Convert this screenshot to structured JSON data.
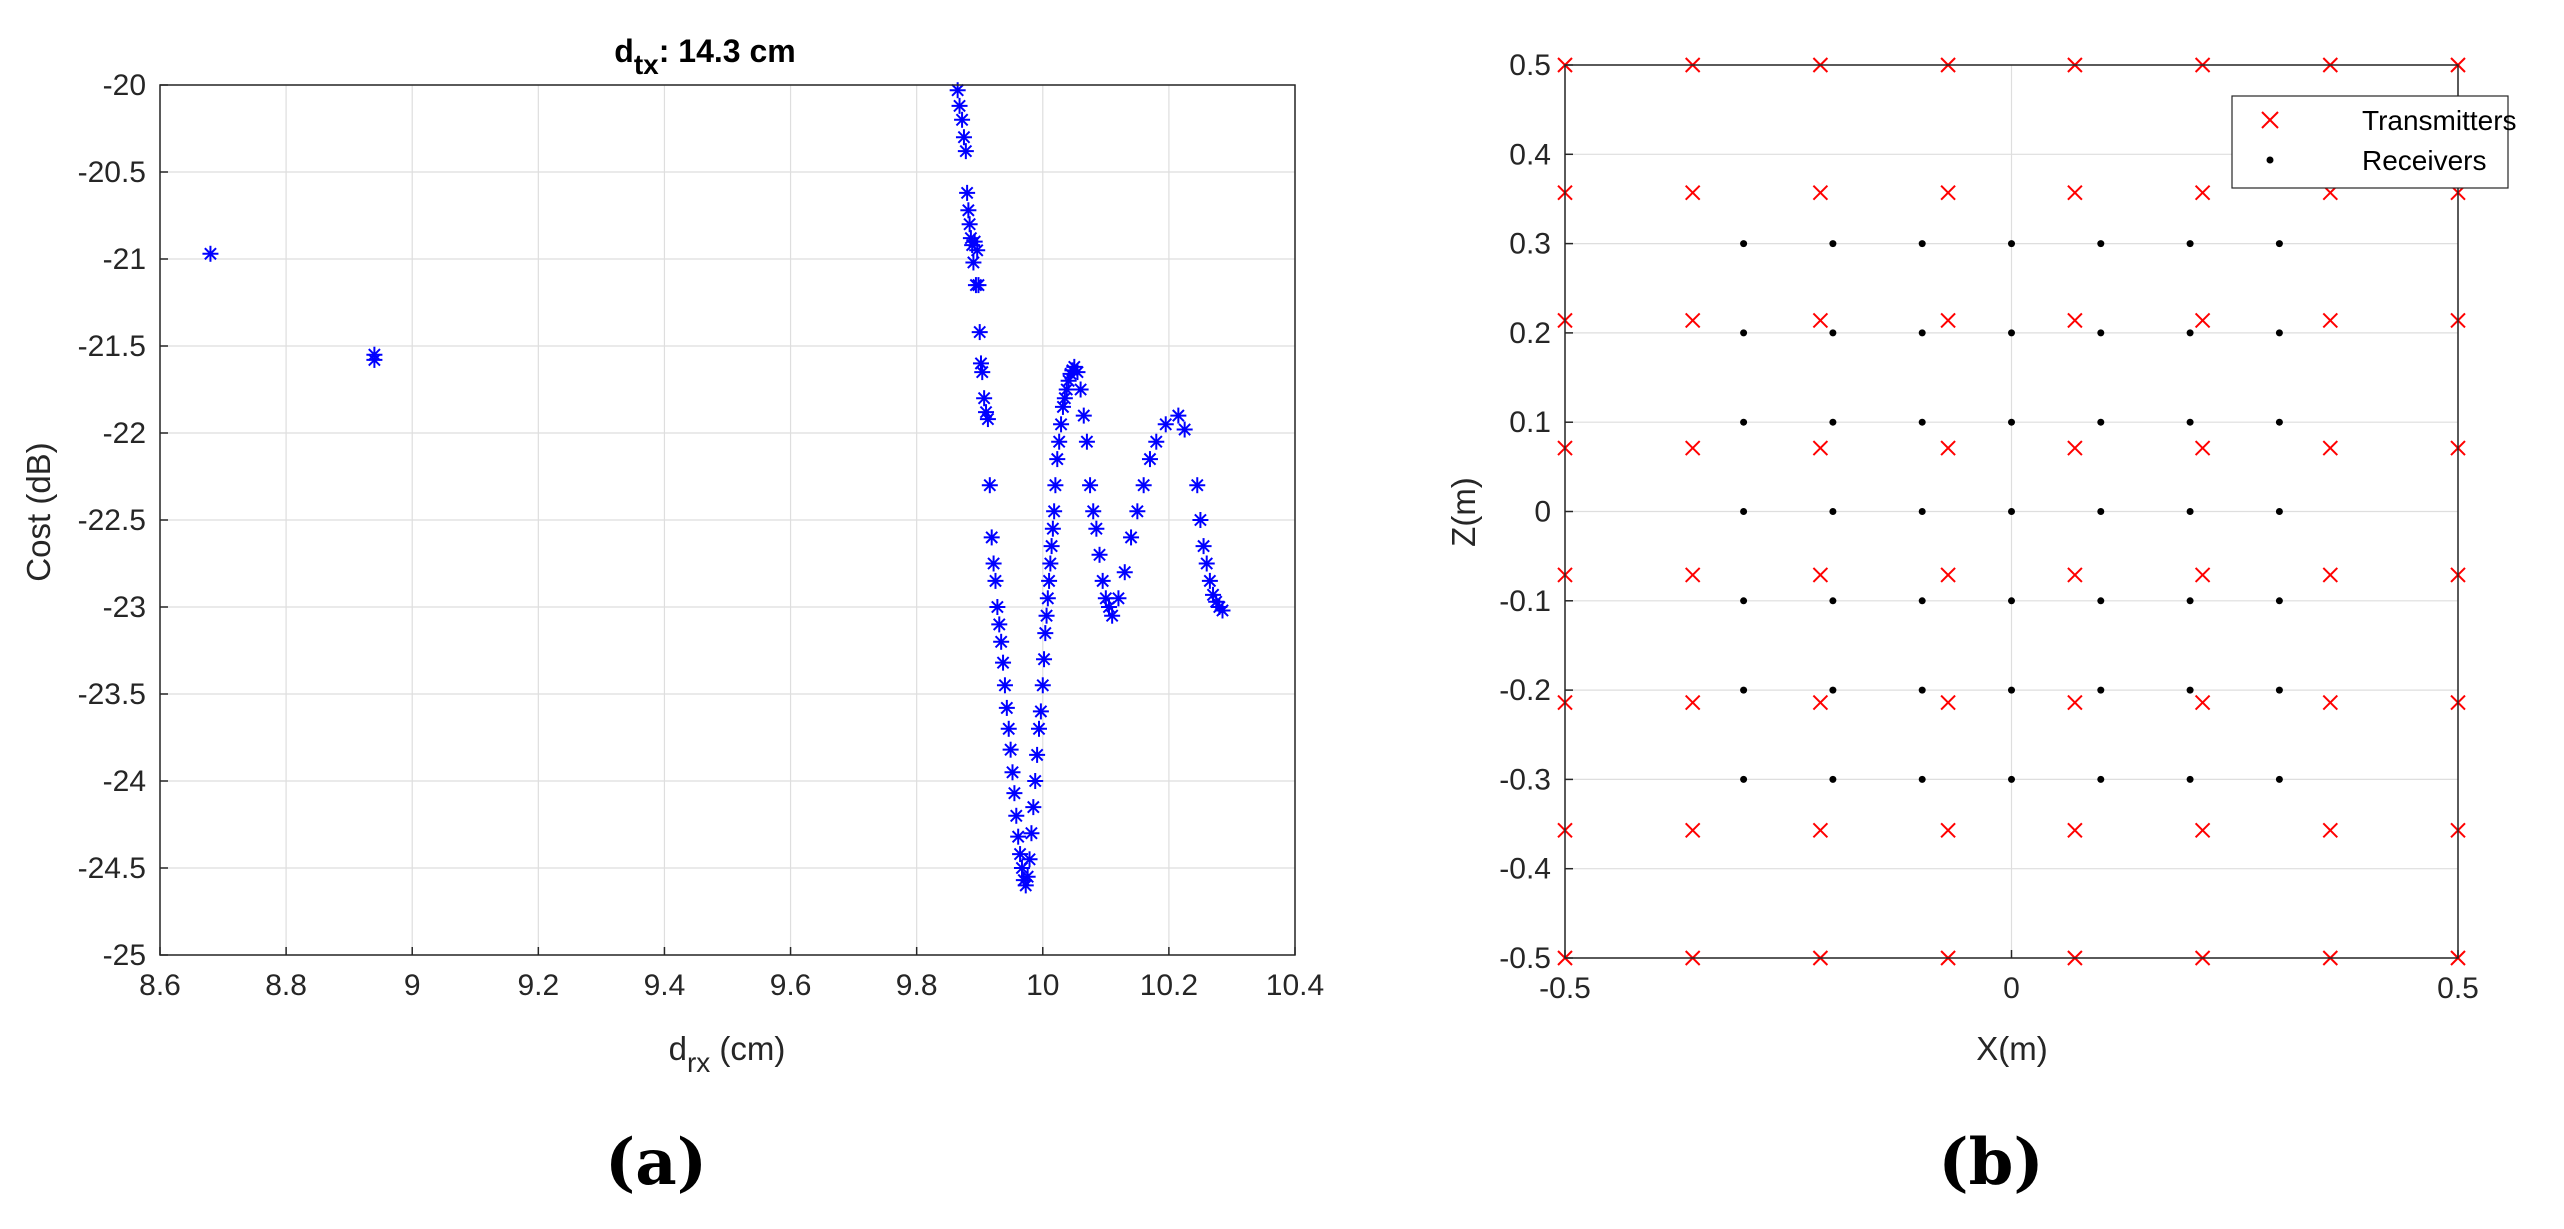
{
  "chart_data": [
    {
      "type": "scatter",
      "panel_label": "(a)",
      "title_main": "d",
      "title_sub": "tx",
      "title_rest": ": 14.3 cm",
      "xlabel_main": "d",
      "xlabel_sub": "rx",
      "xlabel_rest": " (cm)",
      "ylabel": "Cost (dB)",
      "xlim": [
        8.6,
        10.4
      ],
      "ylim": [
        -25,
        -20
      ],
      "xticks": [
        8.6,
        8.8,
        9,
        9.2,
        9.4,
        9.6,
        9.8,
        10,
        10.2,
        10.4
      ],
      "xtick_labels": [
        "8.6",
        "8.8",
        "9",
        "9.2",
        "9.4",
        "9.6",
        "9.8",
        "10",
        "10.2",
        "10.4"
      ],
      "yticks": [
        -25,
        -24.5,
        -24,
        -23.5,
        -23,
        -22.5,
        -22,
        -21.5,
        -21,
        -20.5,
        -20
      ],
      "ytick_labels": [
        "-25",
        "-24.5",
        "-24",
        "-23.5",
        "-23",
        "-22.5",
        "-22",
        "-21.5",
        "-21",
        "-20.5",
        "-20"
      ],
      "grid": true,
      "marker": "asterisk",
      "marker_color": "#0000ff",
      "series": [
        {
          "x": [
            8.68,
            8.94,
            8.94,
            9.865,
            9.868,
            9.872,
            9.875,
            9.878,
            9.88,
            9.882,
            9.884,
            9.886,
            9.888,
            9.89,
            9.892,
            9.894,
            9.896,
            9.898,
            9.9,
            9.902,
            9.904,
            9.907,
            9.91,
            9.913,
            9.916,
            9.919,
            9.922,
            9.925,
            9.928,
            9.931,
            9.934,
            9.937,
            9.94,
            9.943,
            9.946,
            9.949,
            9.952,
            9.955,
            9.958,
            9.961,
            9.964,
            9.967,
            9.97,
            9.973,
            9.976,
            9.979,
            9.982,
            9.985,
            9.988,
            9.991,
            9.994,
            9.997,
            10.0,
            10.002,
            10.004,
            10.006,
            10.008,
            10.01,
            10.012,
            10.014,
            10.016,
            10.018,
            10.02,
            10.023,
            10.026,
            10.029,
            10.032,
            10.035,
            10.038,
            10.041,
            10.044,
            10.047,
            10.05,
            10.055,
            10.06,
            10.065,
            10.07,
            10.075,
            10.08,
            10.085,
            10.09,
            10.095,
            10.1,
            10.105,
            10.11,
            10.12,
            10.13,
            10.14,
            10.15,
            10.16,
            10.17,
            10.18,
            10.195,
            10.215,
            10.225,
            10.245,
            10.25,
            10.255,
            10.26,
            10.265,
            10.27,
            10.275,
            10.28,
            10.285
          ],
          "y": [
            -20.97,
            -21.55,
            -21.58,
            -20.03,
            -20.12,
            -20.2,
            -20.3,
            -20.38,
            -20.62,
            -20.72,
            -20.8,
            -20.88,
            -20.92,
            -21.02,
            -20.9,
            -21.15,
            -20.95,
            -21.15,
            -21.42,
            -21.6,
            -21.65,
            -21.8,
            -21.88,
            -21.92,
            -22.3,
            -22.6,
            -22.75,
            -22.85,
            -23.0,
            -23.1,
            -23.2,
            -23.32,
            -23.45,
            -23.58,
            -23.7,
            -23.82,
            -23.95,
            -24.07,
            -24.2,
            -24.32,
            -24.42,
            -24.5,
            -24.57,
            -24.6,
            -24.55,
            -24.45,
            -24.3,
            -24.15,
            -24.0,
            -23.85,
            -23.7,
            -23.6,
            -23.45,
            -23.3,
            -23.15,
            -23.05,
            -22.95,
            -22.85,
            -22.75,
            -22.65,
            -22.55,
            -22.45,
            -22.3,
            -22.15,
            -22.05,
            -21.95,
            -21.85,
            -21.8,
            -21.75,
            -21.7,
            -21.66,
            -21.64,
            -21.62,
            -21.65,
            -21.75,
            -21.9,
            -22.05,
            -22.3,
            -22.45,
            -22.55,
            -22.7,
            -22.85,
            -22.95,
            -23.0,
            -23.05,
            -22.95,
            -22.8,
            -22.6,
            -22.45,
            -22.3,
            -22.15,
            -22.05,
            -21.95,
            -21.9,
            -21.98,
            -22.3,
            -22.5,
            -22.65,
            -22.75,
            -22.85,
            -22.93,
            -22.97,
            -23.0,
            -23.02
          ]
        }
      ]
    },
    {
      "type": "scatter",
      "panel_label": "(b)",
      "xlabel": "X(m)",
      "ylabel": "Z(m)",
      "xlim": [
        -0.5,
        0.5
      ],
      "ylim": [
        -0.5,
        0.5
      ],
      "xticks": [
        -0.5,
        0,
        0.5
      ],
      "xtick_labels": [
        "-0.5",
        "0",
        "0.5"
      ],
      "yticks": [
        -0.5,
        -0.4,
        -0.3,
        -0.2,
        -0.1,
        0,
        0.1,
        0.2,
        0.3,
        0.4,
        0.5
      ],
      "ytick_labels": [
        "-0.5",
        "-0.4",
        "-0.3",
        "-0.2",
        "-0.1",
        "0",
        "0.1",
        "0.2",
        "0.3",
        "0.4",
        "0.5"
      ],
      "grid": true,
      "legend_position": "top-right",
      "series": [
        {
          "name": "Transmitters",
          "marker": "x",
          "color": "#ff0000",
          "grid_x": [
            -0.5,
            -0.357,
            -0.214,
            -0.071,
            0.071,
            0.214,
            0.357,
            0.5
          ],
          "grid_y": [
            -0.5,
            -0.357,
            -0.214,
            -0.071,
            0.071,
            0.214,
            0.357,
            0.5
          ]
        },
        {
          "name": "Receivers",
          "marker": "dot",
          "color": "#000000",
          "grid_x": [
            -0.3,
            -0.2,
            -0.1,
            0,
            0.1,
            0.2,
            0.3
          ],
          "grid_y": [
            -0.3,
            -0.2,
            -0.1,
            0,
            0.1,
            0.2,
            0.3
          ]
        }
      ]
    }
  ]
}
